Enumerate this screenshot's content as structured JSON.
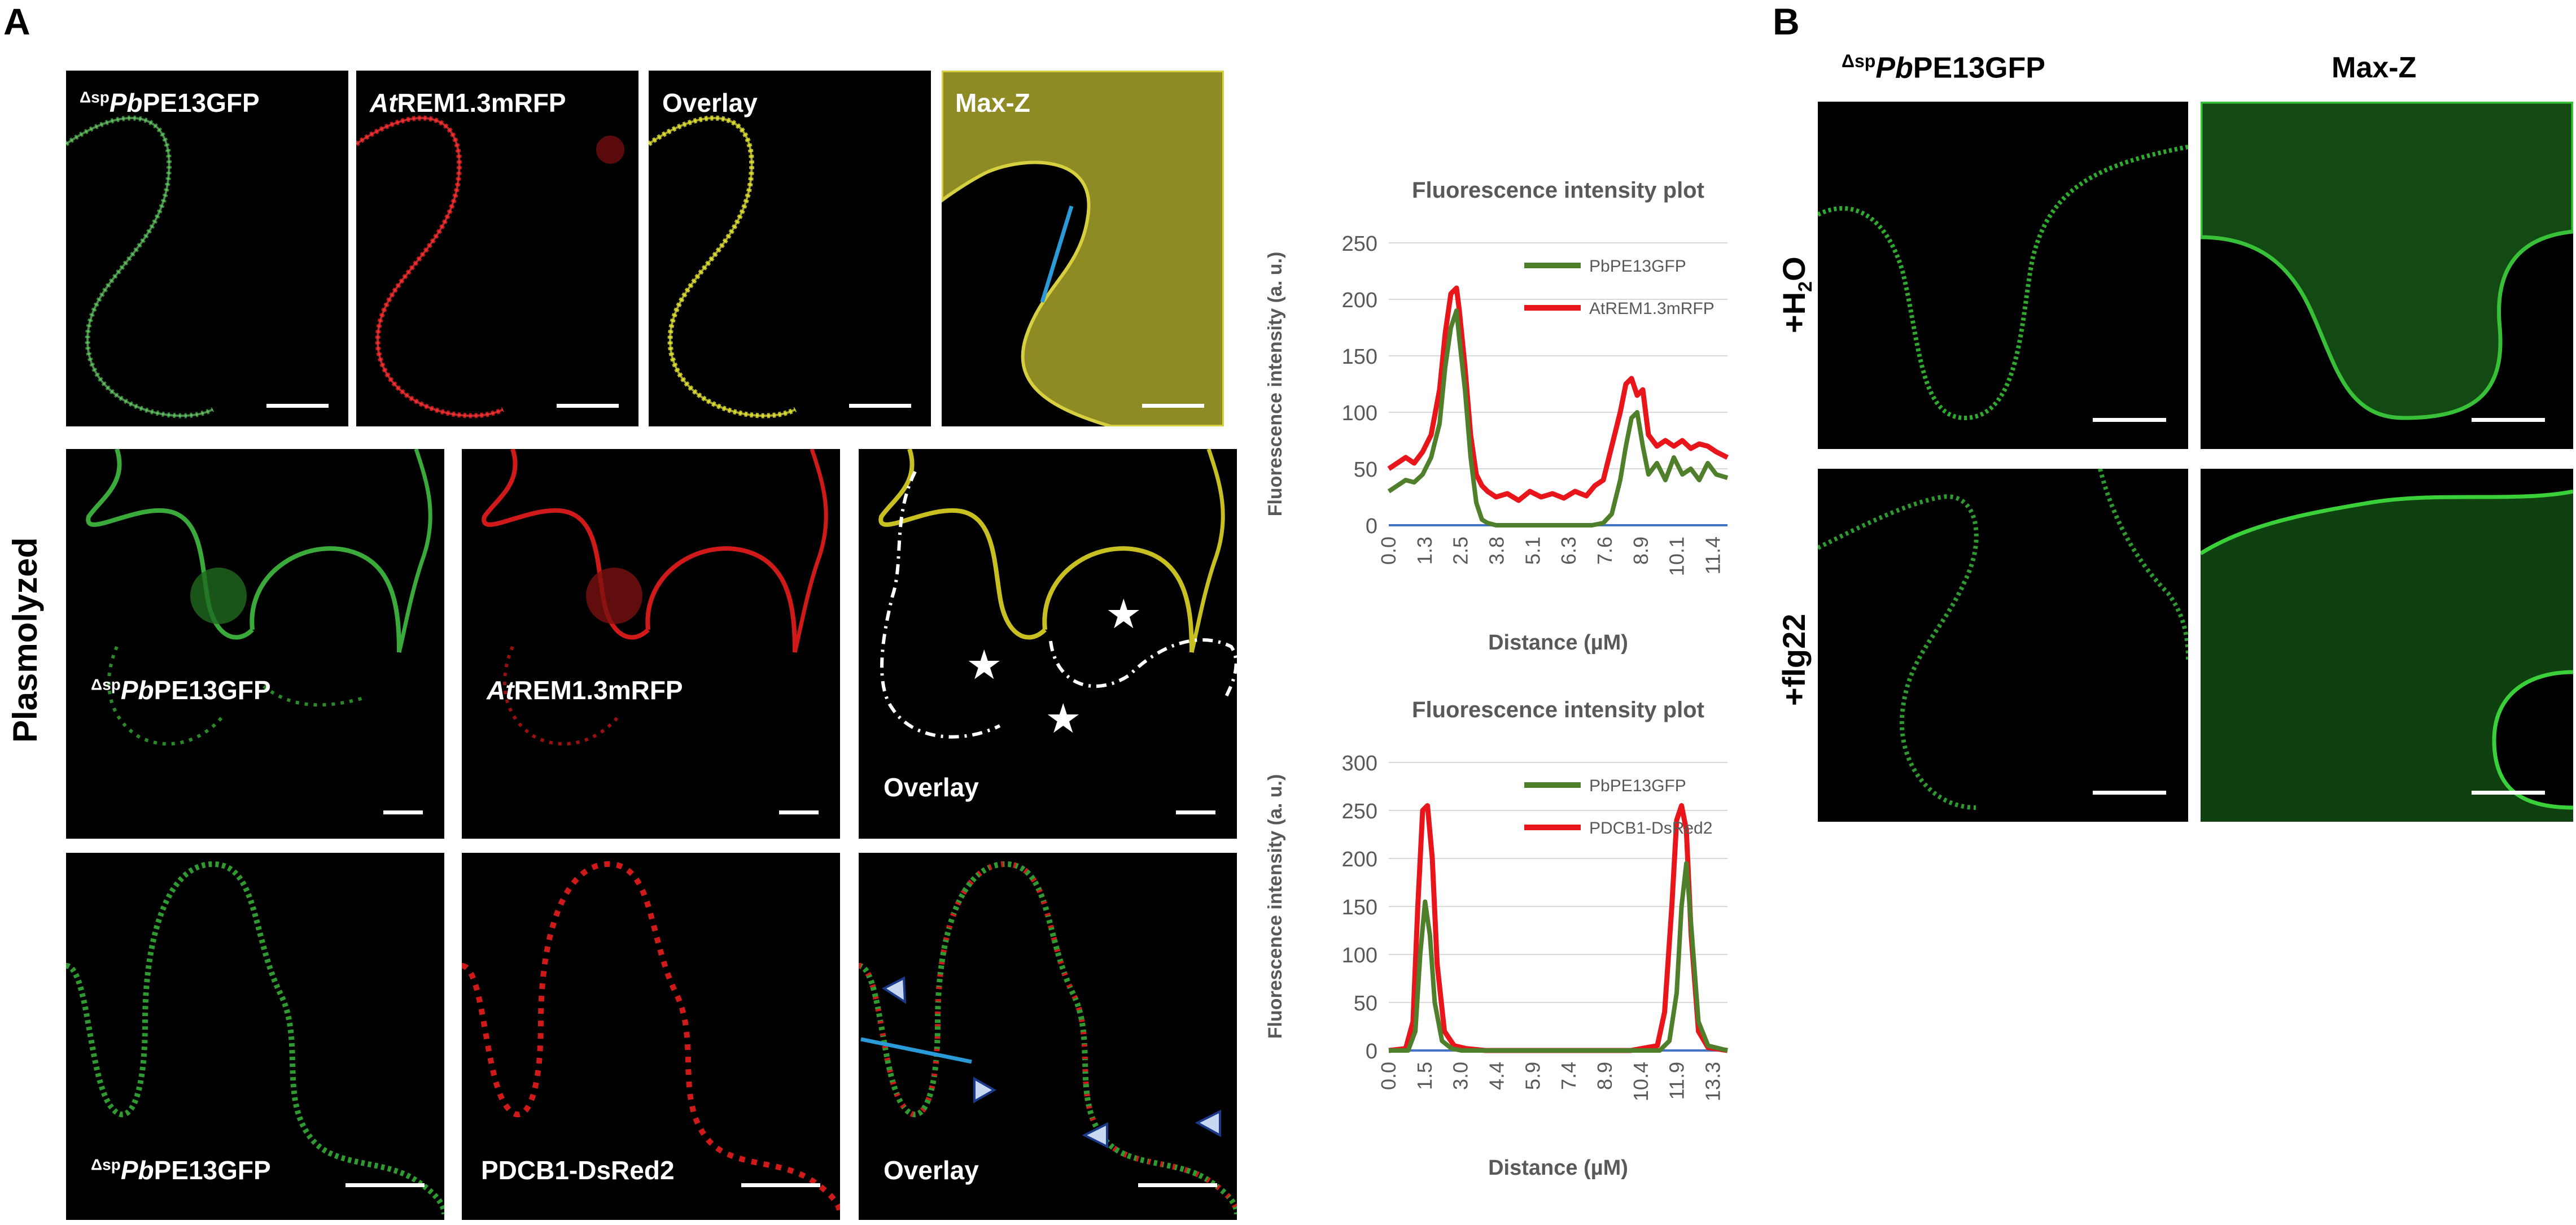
{
  "panel_letters": {
    "a": "A",
    "b": "B"
  },
  "row_label": "Plasmolyzed",
  "micrographs_a": {
    "r1c1": {
      "prefix": "Δsp",
      "italic": "Pb",
      "rest": "PE13GFP"
    },
    "r1c2": {
      "italic": "At",
      "rest": "REM1.3mRFP"
    },
    "r1c3": {
      "text": "Overlay"
    },
    "r1c4": {
      "text": "Max-Z"
    },
    "r2c1": {
      "prefix": "Δsp",
      "italic": "Pb",
      "rest": "PE13GFP"
    },
    "r2c2": {
      "italic": "At",
      "rest": "REM1.3mRFP"
    },
    "r2c3": {
      "text": "Overlay"
    },
    "r3c1": {
      "prefix": "Δsp",
      "italic": "Pb",
      "rest": "PE13GFP"
    },
    "r3c2": {
      "text": "PDCB1-DsRed2"
    },
    "r3c3": {
      "text": "Overlay"
    }
  },
  "panel_b": {
    "col1": {
      "prefix": "Δsp",
      "italic": "Pb",
      "rest": "PE13GFP"
    },
    "col2": "Max-Z",
    "row1": {
      "pre": "+H",
      "sub": "2",
      "post": "O"
    },
    "row2": "+flg22"
  },
  "chart_data": [
    {
      "type": "line",
      "title": "Fluorescence intensity plot",
      "xlabel": "Distance (µM)",
      "ylabel": "Fluorescence intensity (a. u.)",
      "ylim": [
        0,
        250
      ],
      "yticks": [
        0,
        50,
        100,
        150,
        200,
        250
      ],
      "xticks": [
        "0.0",
        "1.3",
        "2.5",
        "3.8",
        "5.1",
        "6.3",
        "7.6",
        "8.9",
        "10.1",
        "11.4"
      ],
      "xlim": [
        0,
        12.0
      ],
      "legend_position": "top-right",
      "series": [
        {
          "name": "PbPE13GFP",
          "color": "#4f7f2a",
          "x": [
            0,
            0.3,
            0.6,
            0.9,
            1.2,
            1.5,
            1.8,
            2.0,
            2.2,
            2.4,
            2.5,
            2.7,
            2.9,
            3.1,
            3.3,
            3.5,
            3.8,
            4.5,
            5.5,
            6.5,
            7.2,
            7.6,
            7.9,
            8.2,
            8.4,
            8.6,
            8.8,
            9.0,
            9.2,
            9.5,
            9.8,
            10.1,
            10.4,
            10.7,
            11.0,
            11.3,
            11.6,
            12.0
          ],
          "y": [
            30,
            35,
            40,
            38,
            45,
            60,
            90,
            140,
            175,
            190,
            165,
            120,
            60,
            20,
            5,
            2,
            0,
            0,
            0,
            0,
            0,
            2,
            10,
            40,
            70,
            95,
            100,
            70,
            45,
            55,
            40,
            60,
            45,
            50,
            40,
            55,
            45,
            42
          ]
        },
        {
          "name": "AtREM1.3mRFP",
          "color": "#e8161b",
          "x": [
            0,
            0.3,
            0.6,
            0.9,
            1.2,
            1.5,
            1.8,
            2.0,
            2.2,
            2.4,
            2.5,
            2.7,
            2.9,
            3.1,
            3.3,
            3.5,
            3.8,
            4.2,
            4.6,
            5.0,
            5.4,
            5.8,
            6.2,
            6.6,
            7.0,
            7.3,
            7.6,
            7.9,
            8.2,
            8.4,
            8.6,
            8.8,
            9.0,
            9.2,
            9.5,
            9.8,
            10.1,
            10.4,
            10.7,
            11.0,
            11.3,
            11.6,
            12.0
          ],
          "y": [
            50,
            55,
            60,
            55,
            65,
            80,
            120,
            170,
            205,
            210,
            190,
            140,
            80,
            45,
            35,
            30,
            25,
            28,
            22,
            30,
            25,
            28,
            24,
            30,
            26,
            35,
            40,
            70,
            100,
            125,
            130,
            115,
            120,
            80,
            70,
            75,
            70,
            75,
            68,
            72,
            70,
            65,
            60
          ]
        }
      ]
    },
    {
      "type": "line",
      "title": "Fluorescence intensity plot",
      "xlabel": "Distance (µM)",
      "ylabel": "Fluorescence intensity (a. u.)",
      "ylim": [
        0,
        300
      ],
      "yticks": [
        0,
        50,
        100,
        150,
        200,
        250,
        300
      ],
      "xticks": [
        "0.0",
        "1.5",
        "3.0",
        "4.4",
        "5.9",
        "7.4",
        "8.9",
        "10.4",
        "11.9",
        "13.3"
      ],
      "xlim": [
        0,
        14.0
      ],
      "legend_position": "top-right",
      "series": [
        {
          "name": "PbPE13GFP",
          "color": "#4f7f2a",
          "x": [
            0,
            0.8,
            1.1,
            1.3,
            1.5,
            1.7,
            1.9,
            2.2,
            2.6,
            3.0,
            4.0,
            6.0,
            8.0,
            10.0,
            11.2,
            11.6,
            11.9,
            12.1,
            12.3,
            12.5,
            12.8,
            13.2,
            14.0
          ],
          "y": [
            0,
            0,
            20,
            100,
            155,
            120,
            50,
            10,
            2,
            0,
            0,
            0,
            0,
            0,
            0,
            10,
            60,
            150,
            195,
            130,
            30,
            5,
            0
          ]
        },
        {
          "name": "PDCB1-DsRed2",
          "color": "#e8161b",
          "x": [
            0,
            0.7,
            1.0,
            1.2,
            1.4,
            1.6,
            1.8,
            2.0,
            2.3,
            2.7,
            3.2,
            4.0,
            6.0,
            8.0,
            10.0,
            11.1,
            11.4,
            11.7,
            11.9,
            12.1,
            12.3,
            12.5,
            12.8,
            13.2,
            14.0
          ],
          "y": [
            0,
            2,
            30,
            150,
            250,
            255,
            200,
            90,
            20,
            5,
            2,
            0,
            0,
            0,
            0,
            5,
            40,
            150,
            240,
            255,
            230,
            120,
            20,
            3,
            0
          ]
        }
      ]
    }
  ]
}
